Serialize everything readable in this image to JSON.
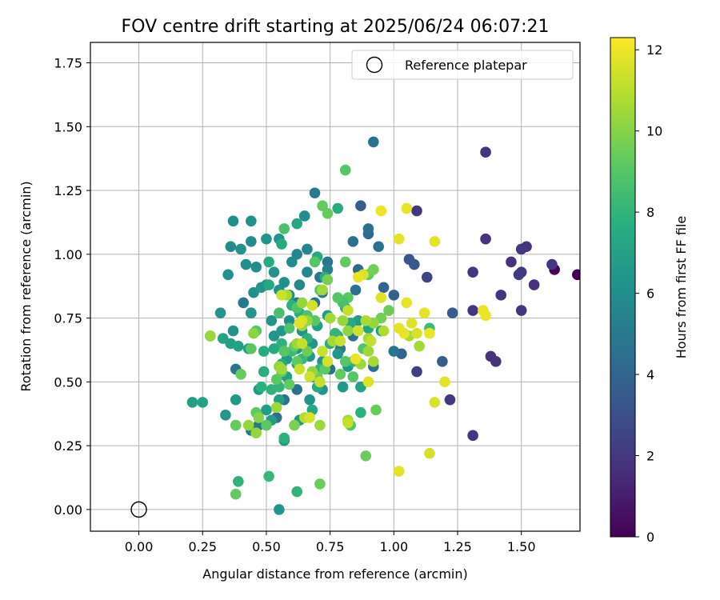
{
  "chart_data": {
    "type": "scatter",
    "title": "FOV centre drift starting at 2025/06/24 06:07:21",
    "xlabel": "Angular distance from reference (arcmin)",
    "ylabel": "Rotation from reference (arcmin)",
    "xlim": [
      -0.19,
      1.73
    ],
    "ylim": [
      -0.085,
      1.83
    ],
    "xticks": [
      "0.00",
      "0.25",
      "0.50",
      "0.75",
      "1.00",
      "1.25",
      "1.50"
    ],
    "xtick_values": [
      0,
      0.25,
      0.5,
      0.75,
      1.0,
      1.25,
      1.5
    ],
    "yticks": [
      "0.00",
      "0.25",
      "0.50",
      "0.75",
      "1.00",
      "1.25",
      "1.50",
      "1.75"
    ],
    "ytick_values": [
      0,
      0.25,
      0.5,
      0.75,
      1.0,
      1.25,
      1.5,
      1.75
    ],
    "grid": true,
    "colormap": "viridis",
    "colorbar": {
      "label": "Hours from first FF file",
      "range": [
        0,
        12.3
      ],
      "ticks": [
        "0",
        "2",
        "4",
        "6",
        "8",
        "10",
        "12"
      ],
      "tick_values": [
        0,
        2,
        4,
        6,
        8,
        10,
        12
      ]
    },
    "legend": {
      "placement": "top-right",
      "entries": [
        {
          "label": "Reference platepar",
          "marker": "open-circle"
        }
      ]
    },
    "reference_point": {
      "x": 0.0,
      "y": 0.0
    },
    "points": [
      [
        1.63,
        0.94,
        0.1
      ],
      [
        1.72,
        0.92,
        0.0
      ],
      [
        1.36,
        1.4,
        1.8
      ],
      [
        1.36,
        1.06,
        1.8
      ],
      [
        1.52,
        1.03,
        1.8
      ],
      [
        1.5,
        1.02,
        1.9
      ],
      [
        1.46,
        0.97,
        1.8
      ],
      [
        1.62,
        0.96,
        1.9
      ],
      [
        1.55,
        0.88,
        1.7
      ],
      [
        1.5,
        0.93,
        2.0
      ],
      [
        1.49,
        0.92,
        2.1
      ],
      [
        1.42,
        0.84,
        1.8
      ],
      [
        1.5,
        0.78,
        1.9
      ],
      [
        1.38,
        0.6,
        1.8
      ],
      [
        1.4,
        0.58,
        1.7
      ],
      [
        1.31,
        0.93,
        1.9
      ],
      [
        1.31,
        0.78,
        1.9
      ],
      [
        1.22,
        0.43,
        2.0
      ],
      [
        1.31,
        0.29,
        2.0
      ],
      [
        1.09,
        1.17,
        2.0
      ],
      [
        1.09,
        0.54,
        2.3
      ],
      [
        1.13,
        0.91,
        2.5
      ],
      [
        1.06,
        0.98,
        3.2
      ],
      [
        1.23,
        0.77,
        3.5
      ],
      [
        1.19,
        0.58,
        3.6
      ],
      [
        1.08,
        0.96,
        3.4
      ],
      [
        0.92,
        1.44,
        4.6
      ],
      [
        0.9,
        1.08,
        4.2
      ],
      [
        0.9,
        1.1,
        4.5
      ],
      [
        0.94,
        1.03,
        4.6
      ],
      [
        0.87,
        1.19,
        3.6
      ],
      [
        0.84,
        1.05,
        4.5
      ],
      [
        0.85,
        0.86,
        4.5
      ],
      [
        0.86,
        0.94,
        4.2
      ],
      [
        0.96,
        0.87,
        4.0
      ],
      [
        1.0,
        0.84,
        3.8
      ],
      [
        1.03,
        0.61,
        4.0
      ],
      [
        0.92,
        0.56,
        4.4
      ],
      [
        0.69,
        1.24,
        5.0
      ],
      [
        0.74,
        0.97,
        4.8
      ],
      [
        0.71,
        0.91,
        4.7
      ],
      [
        0.72,
        0.85,
        4.8
      ],
      [
        0.62,
        0.81,
        4.8
      ],
      [
        0.84,
        0.68,
        4.4
      ],
      [
        0.79,
        0.63,
        4.9
      ],
      [
        0.75,
        0.55,
        4.4
      ],
      [
        0.68,
        0.52,
        4.6
      ],
      [
        0.62,
        0.47,
        4.5
      ],
      [
        0.57,
        0.43,
        4.6
      ],
      [
        0.54,
        0.36,
        4.5
      ],
      [
        0.47,
        0.33,
        4.7
      ],
      [
        0.44,
        0.31,
        5.0
      ],
      [
        0.38,
        0.55,
        4.8
      ],
      [
        0.41,
        0.81,
        4.9
      ],
      [
        0.44,
        0.77,
        5.0
      ],
      [
        0.69,
        0.81,
        4.8
      ],
      [
        0.74,
        0.94,
        5.3
      ],
      [
        1.0,
        0.62,
        4.7
      ],
      [
        0.65,
        1.15,
        5.8
      ],
      [
        0.62,
        1.0,
        5.6
      ],
      [
        0.66,
        1.02,
        5.5
      ],
      [
        0.55,
        1.06,
        6.3
      ],
      [
        0.5,
        1.06,
        6.3
      ],
      [
        0.44,
        1.05,
        5.8
      ],
      [
        0.37,
        1.13,
        6.0
      ],
      [
        0.44,
        1.13,
        6.2
      ],
      [
        0.36,
        1.03,
        5.8
      ],
      [
        0.4,
        1.02,
        6.2
      ],
      [
        0.35,
        0.92,
        6.2
      ],
      [
        0.42,
        0.96,
        6.1
      ],
      [
        0.46,
        0.95,
        6.0
      ],
      [
        0.45,
        0.85,
        6.1
      ],
      [
        0.5,
        0.88,
        6.0
      ],
      [
        0.55,
        0.86,
        6.2
      ],
      [
        0.57,
        0.89,
        6.1
      ],
      [
        0.59,
        0.84,
        6.0
      ],
      [
        0.63,
        0.88,
        5.8
      ],
      [
        0.6,
        0.97,
        5.8
      ],
      [
        0.66,
        0.93,
        5.6
      ],
      [
        0.53,
        0.93,
        6.3
      ],
      [
        0.48,
        0.87,
        6.4
      ],
      [
        0.32,
        0.77,
        6.3
      ],
      [
        0.37,
        0.7,
        6.2
      ],
      [
        0.44,
        0.77,
        6.4
      ],
      [
        0.52,
        0.74,
        6.3
      ],
      [
        0.53,
        0.68,
        6.4
      ],
      [
        0.56,
        0.7,
        6.4
      ],
      [
        0.59,
        0.74,
        6.0
      ],
      [
        0.64,
        0.7,
        6.2
      ],
      [
        0.68,
        0.65,
        6.4
      ],
      [
        0.62,
        0.63,
        6.3
      ],
      [
        0.58,
        0.59,
        6.5
      ],
      [
        0.62,
        0.57,
        6.5
      ],
      [
        0.67,
        0.6,
        6.6
      ],
      [
        0.72,
        0.58,
        6.5
      ],
      [
        0.78,
        0.61,
        6.4
      ],
      [
        0.82,
        0.56,
        6.4
      ],
      [
        0.8,
        0.48,
        6.5
      ],
      [
        0.72,
        0.47,
        6.3
      ],
      [
        0.67,
        0.43,
        6.2
      ],
      [
        0.63,
        0.35,
        6.4
      ],
      [
        0.57,
        0.27,
        6.6
      ],
      [
        0.55,
        0.0,
        6.4
      ],
      [
        0.21,
        0.42,
        6.8
      ],
      [
        0.25,
        0.42,
        7.0
      ],
      [
        0.34,
        0.37,
        6.5
      ],
      [
        0.38,
        0.43,
        6.6
      ],
      [
        0.47,
        0.47,
        6.6
      ],
      [
        0.5,
        0.39,
        6.8
      ],
      [
        0.52,
        0.35,
        6.8
      ],
      [
        0.55,
        0.43,
        6.8
      ],
      [
        0.58,
        0.52,
        6.8
      ],
      [
        0.36,
        0.65,
        6.9
      ],
      [
        0.39,
        0.64,
        7.0
      ],
      [
        0.43,
        0.63,
        6.9
      ],
      [
        0.33,
        0.67,
        7.0
      ],
      [
        0.28,
        0.68,
        7.0
      ],
      [
        0.7,
        0.72,
        6.9
      ],
      [
        0.74,
        0.76,
        6.6
      ],
      [
        0.86,
        0.74,
        6.7
      ],
      [
        0.9,
        0.71,
        7.1
      ],
      [
        0.95,
        0.7,
        7.0
      ],
      [
        0.87,
        0.48,
        7.0
      ],
      [
        0.68,
        0.39,
        7.3
      ],
      [
        0.7,
        0.48,
        7.5
      ],
      [
        0.56,
        0.57,
        7.4
      ],
      [
        0.49,
        0.62,
        7.4
      ],
      [
        0.51,
        0.88,
        7.3
      ],
      [
        0.51,
        0.97,
        7.4
      ],
      [
        0.56,
        1.04,
        7.5
      ],
      [
        0.62,
        1.12,
        7.3
      ],
      [
        0.7,
        0.99,
        7.4
      ],
      [
        0.73,
        0.91,
        7.7
      ],
      [
        0.78,
        1.18,
        7.6
      ],
      [
        0.81,
        0.79,
        7.6
      ],
      [
        0.83,
        0.73,
        7.4
      ],
      [
        0.78,
        0.68,
        7.5
      ],
      [
        0.75,
        0.65,
        7.6
      ],
      [
        0.66,
        0.67,
        7.8
      ],
      [
        0.63,
        0.77,
        7.7
      ],
      [
        0.6,
        0.8,
        7.8
      ],
      [
        0.56,
        0.65,
        7.9
      ],
      [
        0.53,
        0.63,
        7.5
      ],
      [
        0.49,
        0.54,
        7.6
      ],
      [
        0.48,
        0.48,
        7.8
      ],
      [
        0.52,
        0.47,
        7.9
      ],
      [
        0.55,
        0.48,
        8.0
      ],
      [
        0.57,
        0.28,
        7.8
      ],
      [
        0.39,
        0.11,
        7.9
      ],
      [
        0.51,
        0.13,
        8.2
      ],
      [
        0.62,
        0.07,
        8.0
      ],
      [
        0.87,
        0.38,
        7.8
      ],
      [
        0.71,
        0.55,
        8.0
      ],
      [
        0.77,
        0.69,
        8.1
      ],
      [
        0.6,
        0.62,
        8.3
      ],
      [
        0.64,
        0.59,
        8.2
      ],
      [
        1.14,
        0.71,
        8.4
      ],
      [
        0.84,
        0.58,
        8.0
      ],
      [
        0.81,
        1.33,
        9.0
      ],
      [
        0.72,
        1.19,
        9.3
      ],
      [
        0.74,
        1.16,
        9.4
      ],
      [
        0.57,
        1.1,
        8.7
      ],
      [
        0.69,
        0.97,
        9.0
      ],
      [
        0.81,
        0.97,
        9.3
      ],
      [
        0.82,
        0.83,
        9.1
      ],
      [
        0.8,
        0.81,
        8.6
      ],
      [
        0.78,
        0.83,
        9.0
      ],
      [
        0.71,
        0.86,
        9.0
      ],
      [
        0.62,
        0.79,
        8.8
      ],
      [
        0.66,
        0.76,
        8.8
      ],
      [
        0.69,
        0.74,
        9.0
      ],
      [
        0.59,
        0.71,
        8.8
      ],
      [
        0.55,
        0.77,
        8.6
      ],
      [
        0.46,
        0.7,
        9.0
      ],
      [
        0.44,
        0.63,
        9.1
      ],
      [
        0.57,
        0.62,
        9.0
      ],
      [
        0.61,
        0.64,
        9.3
      ],
      [
        0.66,
        0.62,
        9.5
      ],
      [
        0.62,
        0.58,
        9.2
      ],
      [
        0.54,
        0.51,
        9.1
      ],
      [
        0.56,
        0.54,
        9.4
      ],
      [
        0.59,
        0.49,
        9.3
      ],
      [
        0.7,
        0.52,
        9.5
      ],
      [
        0.73,
        0.55,
        9.2
      ],
      [
        0.88,
        0.63,
        8.9
      ],
      [
        0.81,
        0.58,
        9.0
      ],
      [
        0.79,
        0.53,
        9.3
      ],
      [
        0.84,
        0.52,
        9.0
      ],
      [
        0.83,
        0.33,
        9.0
      ],
      [
        0.5,
        0.33,
        9.1
      ],
      [
        0.46,
        0.38,
        9.2
      ],
      [
        0.4,
        0.53,
        9.4
      ],
      [
        0.38,
        0.33,
        9.3
      ],
      [
        0.38,
        0.06,
        9.3
      ],
      [
        0.71,
        0.1,
        9.5
      ],
      [
        0.89,
        0.21,
        9.5
      ],
      [
        0.93,
        0.39,
        9.4
      ],
      [
        0.9,
        0.92,
        9.3
      ],
      [
        0.92,
        0.94,
        9.6
      ],
      [
        0.95,
        0.75,
        9.6
      ],
      [
        0.98,
        0.78,
        9.5
      ],
      [
        0.74,
        0.9,
        9.7
      ],
      [
        0.61,
        0.33,
        9.8
      ],
      [
        0.43,
        0.33,
        10.3
      ],
      [
        0.28,
        0.68,
        10.4
      ],
      [
        0.45,
        0.69,
        10.1
      ],
      [
        0.46,
        0.3,
        10.3
      ],
      [
        0.47,
        0.36,
        10.0
      ],
      [
        0.54,
        0.4,
        10.4
      ],
      [
        0.55,
        0.56,
        10.3
      ],
      [
        0.56,
        0.55,
        10.5
      ],
      [
        0.62,
        0.65,
        10.4
      ],
      [
        0.64,
        0.72,
        10.4
      ],
      [
        0.66,
        0.74,
        10.3
      ],
      [
        0.64,
        0.81,
        10.3
      ],
      [
        0.72,
        0.86,
        10.5
      ],
      [
        0.58,
        0.84,
        10.6
      ],
      [
        0.68,
        0.54,
        10.2
      ],
      [
        0.75,
        0.75,
        10.5
      ],
      [
        0.8,
        0.74,
        10.3
      ],
      [
        0.82,
        0.7,
        10.2
      ],
      [
        0.9,
        0.62,
        10.4
      ],
      [
        0.9,
        0.67,
        10.5
      ],
      [
        0.92,
        0.73,
        10.3
      ],
      [
        0.92,
        0.58,
        10.6
      ],
      [
        0.87,
        0.57,
        10.4
      ],
      [
        0.82,
        0.35,
        10.5
      ],
      [
        0.71,
        0.33,
        10.4
      ],
      [
        0.76,
        0.66,
        10.6
      ],
      [
        0.89,
        0.74,
        10.7
      ],
      [
        1.1,
        0.64,
        10.6
      ],
      [
        0.71,
        0.5,
        10.8
      ],
      [
        0.65,
        0.36,
        10.9
      ],
      [
        0.96,
        0.7,
        10.8
      ],
      [
        1.06,
        0.68,
        10.7
      ],
      [
        0.95,
        1.17,
        12.0
      ],
      [
        1.05,
        1.18,
        11.9
      ],
      [
        1.02,
        1.06,
        11.8
      ],
      [
        1.16,
        1.05,
        11.8
      ],
      [
        0.88,
        0.92,
        11.6
      ],
      [
        0.86,
        0.91,
        11.9
      ],
      [
        0.95,
        0.83,
        11.7
      ],
      [
        1.05,
        0.81,
        11.9
      ],
      [
        1.12,
        0.77,
        11.8
      ],
      [
        1.02,
        0.71,
        11.8
      ],
      [
        1.04,
        0.69,
        11.9
      ],
      [
        1.07,
        0.73,
        11.7
      ],
      [
        1.09,
        0.69,
        11.6
      ],
      [
        1.14,
        0.69,
        11.9
      ],
      [
        1.35,
        0.78,
        11.9
      ],
      [
        1.36,
        0.76,
        12.0
      ],
      [
        1.2,
        0.5,
        11.8
      ],
      [
        1.16,
        0.42,
        11.6
      ],
      [
        1.14,
        0.22,
        11.5
      ],
      [
        1.02,
        0.15,
        11.8
      ],
      [
        0.85,
        0.59,
        11.9
      ],
      [
        0.9,
        0.5,
        11.7
      ],
      [
        0.82,
        0.78,
        11.2
      ],
      [
        0.91,
        0.66,
        11.2
      ],
      [
        0.86,
        0.7,
        11.4
      ],
      [
        0.74,
        0.58,
        11.5
      ],
      [
        0.79,
        0.66,
        11.3
      ],
      [
        0.72,
        0.62,
        11.3
      ],
      [
        0.71,
        0.5,
        11.2
      ],
      [
        0.67,
        0.52,
        11.4
      ],
      [
        0.63,
        0.55,
        11.3
      ],
      [
        0.64,
        0.65,
        11.2
      ],
      [
        0.64,
        0.74,
        11.5
      ],
      [
        0.63,
        0.73,
        11.7
      ],
      [
        0.56,
        0.84,
        11.3
      ],
      [
        0.68,
        0.8,
        11.5
      ],
      [
        0.82,
        0.34,
        11.2
      ],
      [
        0.67,
        0.36,
        11.6
      ]
    ]
  }
}
